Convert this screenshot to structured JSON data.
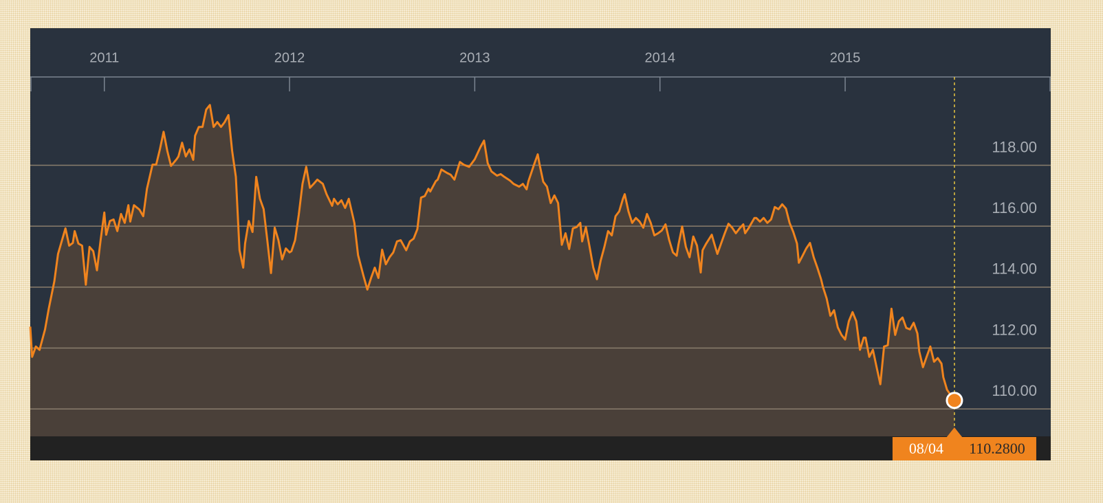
{
  "chart_data": {
    "type": "area",
    "x": [
      2010.6,
      2010.61,
      2010.63,
      2010.65,
      2010.68,
      2010.7,
      2010.73,
      2010.75,
      2010.79,
      2010.81,
      2010.83,
      2010.84,
      2010.86,
      2010.88,
      2010.9,
      2010.92,
      2010.94,
      2010.96,
      2010.98,
      2011.0,
      2011.01,
      2011.03,
      2011.05,
      2011.07,
      2011.09,
      2011.11,
      2011.13,
      2011.14,
      2011.16,
      2011.19,
      2011.21,
      2011.23,
      2011.26,
      2011.28,
      2011.3,
      2011.32,
      2011.34,
      2011.36,
      2011.39,
      2011.4,
      2011.42,
      2011.44,
      2011.46,
      2011.48,
      2011.49,
      2011.51,
      2011.53,
      2011.55,
      2011.57,
      2011.59,
      2011.61,
      2011.63,
      2011.65,
      2011.67,
      2011.69,
      2011.71,
      2011.73,
      2011.75,
      2011.76,
      2011.78,
      2011.8,
      2011.82,
      2011.84,
      2011.86,
      2011.88,
      2011.9,
      2011.92,
      2011.94,
      2011.96,
      2011.98,
      2012.0,
      2012.01,
      2012.03,
      2012.05,
      2012.07,
      2012.09,
      2012.11,
      2012.13,
      2012.15,
      2012.18,
      2012.2,
      2012.23,
      2012.24,
      2012.26,
      2012.28,
      2012.3,
      2012.32,
      2012.35,
      2012.37,
      2012.4,
      2012.42,
      2012.44,
      2012.46,
      2012.48,
      2012.5,
      2012.52,
      2012.54,
      2012.56,
      2012.58,
      2012.6,
      2012.63,
      2012.65,
      2012.67,
      2012.69,
      2012.71,
      2012.73,
      2012.75,
      2012.76,
      2012.79,
      2012.8,
      2012.82,
      2012.85,
      2012.87,
      2012.89,
      2012.92,
      2012.94,
      2012.97,
      2013.0,
      2013.03,
      2013.05,
      2013.07,
      2013.09,
      2013.12,
      2013.14,
      2013.16,
      2013.19,
      2013.21,
      2013.24,
      2013.26,
      2013.28,
      2013.29,
      2013.32,
      2013.34,
      2013.35,
      2013.37,
      2013.39,
      2013.41,
      2013.43,
      2013.45,
      2013.47,
      2013.49,
      2013.51,
      2013.53,
      2013.55,
      2013.57,
      2013.58,
      2013.6,
      2013.62,
      2013.64,
      2013.66,
      2013.68,
      2013.7,
      2013.72,
      2013.74,
      2013.76,
      2013.78,
      2013.8,
      2013.81,
      2013.83,
      2013.85,
      2013.87,
      2013.89,
      2013.91,
      2013.93,
      2013.95,
      2013.97,
      2013.99,
      2014.01,
      2014.03,
      2014.05,
      2014.07,
      2014.09,
      2014.1,
      2014.12,
      2014.14,
      2014.16,
      2014.18,
      2014.2,
      2014.22,
      2014.23,
      2014.25,
      2014.28,
      2014.29,
      2014.31,
      2014.33,
      2014.35,
      2014.37,
      2014.39,
      2014.41,
      2014.43,
      2014.45,
      2014.46,
      2014.48,
      2014.51,
      2014.52,
      2014.54,
      2014.56,
      2014.58,
      2014.6,
      2014.62,
      2014.64,
      2014.66,
      2014.68,
      2014.7,
      2014.72,
      2014.74,
      2014.75,
      2014.77,
      2014.79,
      2014.81,
      2014.83,
      2014.85,
      2014.87,
      2014.88,
      2014.9,
      2014.92,
      2014.94,
      2014.96,
      2014.98,
      2015.0,
      2015.02,
      2015.04,
      2015.06,
      2015.08,
      2015.1,
      2015.11,
      2015.13,
      2015.15,
      2015.17,
      2015.19,
      2015.21,
      2015.23,
      2015.25,
      2015.27,
      2015.29,
      2015.31,
      2015.33,
      2015.35,
      2015.37,
      2015.39,
      2015.4,
      2015.42,
      2015.44,
      2015.46,
      2015.48,
      2015.5,
      2015.52,
      2015.53,
      2015.55,
      2015.59
    ],
    "values": [
      112.7,
      111.71,
      112.05,
      111.94,
      112.61,
      113.29,
      114.19,
      115.09,
      115.93,
      115.36,
      115.45,
      115.84,
      115.43,
      115.36,
      114.08,
      115.32,
      115.18,
      114.55,
      115.54,
      116.45,
      115.72,
      116.17,
      116.22,
      115.84,
      116.4,
      116.11,
      116.69,
      116.15,
      116.69,
      116.54,
      116.33,
      117.23,
      118.02,
      118.02,
      118.52,
      119.1,
      118.47,
      117.98,
      118.2,
      118.29,
      118.74,
      118.29,
      118.52,
      118.18,
      118.97,
      119.26,
      119.26,
      119.83,
      119.98,
      119.26,
      119.42,
      119.26,
      119.42,
      119.65,
      118.47,
      117.62,
      115.21,
      114.64,
      115.43,
      116.17,
      115.81,
      117.62,
      116.9,
      116.56,
      115.54,
      114.46,
      115.95,
      115.54,
      114.91,
      115.27,
      115.14,
      115.18,
      115.54,
      116.38,
      117.39,
      117.95,
      117.26,
      117.39,
      117.53,
      117.39,
      117.05,
      116.67,
      116.9,
      116.72,
      116.85,
      116.6,
      116.9,
      116.11,
      115.05,
      114.35,
      113.92,
      114.3,
      114.64,
      114.3,
      115.23,
      114.75,
      114.98,
      115.14,
      115.5,
      115.54,
      115.21,
      115.5,
      115.59,
      115.9,
      116.94,
      116.99,
      117.23,
      117.14,
      117.48,
      117.53,
      117.86,
      117.75,
      117.69,
      117.53,
      118.11,
      118.02,
      117.95,
      118.2,
      118.59,
      118.81,
      118.07,
      117.8,
      117.66,
      117.71,
      117.62,
      117.5,
      117.39,
      117.3,
      117.39,
      117.21,
      117.48,
      118.02,
      118.36,
      118.02,
      117.46,
      117.3,
      116.76,
      117.01,
      116.76,
      115.39,
      115.77,
      115.25,
      115.93,
      115.97,
      116.11,
      115.5,
      115.97,
      115.32,
      114.64,
      114.26,
      114.87,
      115.32,
      115.84,
      115.7,
      116.33,
      116.49,
      116.9,
      117.05,
      116.49,
      116.11,
      116.27,
      116.15,
      115.95,
      116.4,
      116.11,
      115.7,
      115.77,
      115.86,
      116.06,
      115.54,
      115.14,
      115.03,
      115.39,
      115.99,
      115.32,
      114.98,
      115.66,
      115.36,
      114.48,
      115.21,
      115.43,
      115.72,
      115.5,
      115.09,
      115.43,
      115.77,
      116.08,
      115.95,
      115.77,
      115.93,
      116.06,
      115.77,
      115.95,
      116.27,
      116.27,
      116.15,
      116.27,
      116.11,
      116.22,
      116.63,
      116.56,
      116.72,
      116.58,
      116.11,
      115.81,
      115.43,
      114.8,
      115.03,
      115.27,
      115.45,
      114.98,
      114.64,
      114.26,
      114.01,
      113.63,
      113.06,
      113.24,
      112.68,
      112.43,
      112.28,
      112.88,
      113.18,
      112.88,
      111.94,
      112.34,
      112.34,
      111.71,
      111.94,
      111.37,
      110.81,
      112.05,
      112.09,
      113.29,
      112.43,
      112.88,
      113.0,
      112.66,
      112.61,
      112.83,
      112.48,
      111.89,
      111.37,
      111.71,
      112.05,
      111.55,
      111.67,
      111.49,
      111.04,
      110.63,
      110.28
    ],
    "color": "#f0841e",
    "fill_color": "#4a4039",
    "xlim": [
      2010.6,
      2016.11
    ],
    "xticks": [
      2011,
      2012,
      2013,
      2014,
      2015
    ],
    "ylim": [
      109.1,
      120.9
    ],
    "yticks": [
      {
        "value": 110,
        "label": "110.00"
      },
      {
        "value": 112,
        "label": "112.00"
      },
      {
        "value": 114,
        "label": "114.00"
      },
      {
        "value": 116,
        "label": "116.00"
      },
      {
        "value": 118,
        "label": "118.00"
      }
    ],
    "grid": true,
    "annotation": {
      "x_label": "08/04",
      "y_label": "110.2800"
    }
  }
}
